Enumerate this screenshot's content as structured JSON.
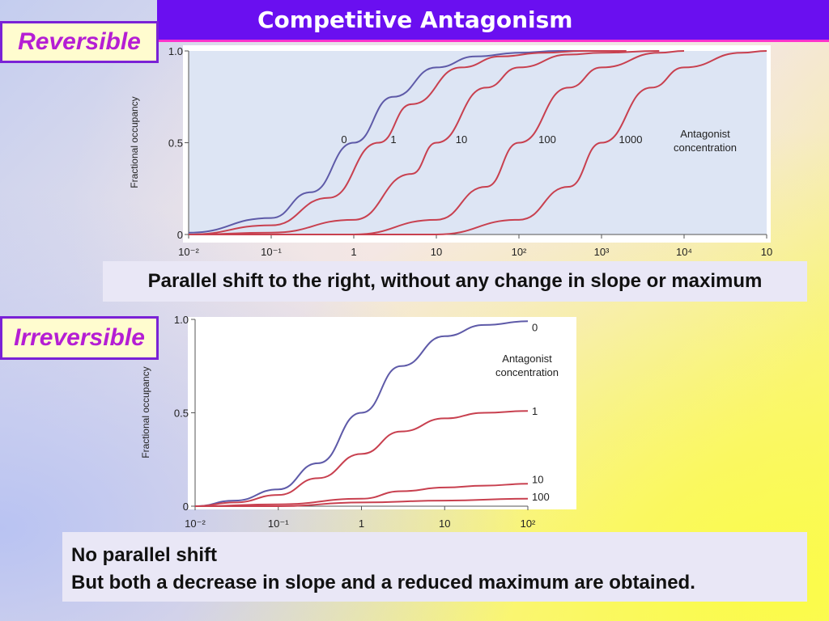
{
  "header": {
    "title": "Competitive Antagonism"
  },
  "tags": {
    "reversible": "Reversible",
    "irreversible": "Irreversible"
  },
  "captions": {
    "top": "Parallel shift to the right, without any change in slope or maximum",
    "bottom_line1": "No parallel shift",
    "bottom_line2": "But both a decrease in slope and a reduced maximum are obtained."
  },
  "colors": {
    "control": "#5e5aa8",
    "antagonist": "#c8404f",
    "plot_bg": "#dde5f4",
    "frame": "#ffffff"
  },
  "chart_data": [
    {
      "type": "line",
      "title": "",
      "ylabel": "Fractional occupancy",
      "xlabel": "",
      "x_scale": "log",
      "xlim": [
        0.01,
        100000
      ],
      "ylim": [
        0,
        1.0
      ],
      "x_tick_labels": [
        "10⁻²",
        "10⁻¹",
        "1",
        "10",
        "10²",
        "10³",
        "10⁴",
        "10"
      ],
      "y_tick_labels": [
        "0",
        "0.5",
        "1.0"
      ],
      "legend_title": [
        "Antagonist",
        "concentration"
      ],
      "series": [
        {
          "name": "0",
          "x": [
            0.01,
            0.1,
            0.3,
            1,
            3,
            10,
            30,
            100,
            300,
            1000
          ],
          "y": [
            0.01,
            0.09,
            0.23,
            0.5,
            0.75,
            0.91,
            0.97,
            0.99,
            1.0,
            1.0
          ]
        },
        {
          "name": "1",
          "x": [
            0.01,
            0.1,
            0.5,
            2,
            5,
            20,
            60,
            200,
            600,
            2000
          ],
          "y": [
            0.0,
            0.05,
            0.2,
            0.5,
            0.71,
            0.91,
            0.97,
            0.99,
            1.0,
            1.0
          ]
        },
        {
          "name": "10",
          "x": [
            0.01,
            0.1,
            1,
            5,
            10,
            40,
            100,
            400,
            1000,
            5000
          ],
          "y": [
            0.0,
            0.01,
            0.08,
            0.33,
            0.5,
            0.8,
            0.91,
            0.98,
            0.99,
            1.0
          ]
        },
        {
          "name": "100",
          "x": [
            0.01,
            1,
            10,
            40,
            100,
            400,
            1000,
            5000,
            10000
          ],
          "y": [
            0.0,
            0.0,
            0.08,
            0.26,
            0.5,
            0.8,
            0.91,
            0.99,
            1.0
          ]
        },
        {
          "name": "1000",
          "x": [
            0.01,
            10,
            100,
            400,
            1000,
            4000,
            10000,
            50000,
            100000
          ],
          "y": [
            0.0,
            0.0,
            0.08,
            0.26,
            0.5,
            0.8,
            0.91,
            0.99,
            1.0
          ]
        }
      ]
    },
    {
      "type": "line",
      "title": "",
      "ylabel": "Fractional occupancy",
      "xlabel": "",
      "x_scale": "log",
      "xlim": [
        0.01,
        100
      ],
      "ylim": [
        0,
        1.0
      ],
      "x_tick_labels": [
        "10⁻²",
        "10⁻¹",
        "1",
        "10",
        "10²"
      ],
      "y_tick_labels": [
        "0",
        "0.5",
        "1.0"
      ],
      "legend_title": [
        "Antagonist",
        "concentration"
      ],
      "series": [
        {
          "name": "0",
          "x": [
            0.01,
            0.03,
            0.1,
            0.3,
            1,
            3,
            10,
            30,
            100
          ],
          "y": [
            0.0,
            0.03,
            0.09,
            0.23,
            0.5,
            0.75,
            0.91,
            0.97,
            0.99
          ]
        },
        {
          "name": "1",
          "x": [
            0.01,
            0.03,
            0.1,
            0.3,
            1,
            3,
            10,
            30,
            100
          ],
          "y": [
            0.0,
            0.02,
            0.06,
            0.15,
            0.28,
            0.4,
            0.47,
            0.5,
            0.51
          ]
        },
        {
          "name": "10",
          "x": [
            0.01,
            0.1,
            1,
            3,
            10,
            30,
            100
          ],
          "y": [
            0.0,
            0.01,
            0.04,
            0.08,
            0.1,
            0.11,
            0.12
          ]
        },
        {
          "name": "100",
          "x": [
            0.01,
            0.1,
            1,
            10,
            100
          ],
          "y": [
            0.0,
            0.0,
            0.02,
            0.03,
            0.04
          ]
        }
      ]
    }
  ]
}
